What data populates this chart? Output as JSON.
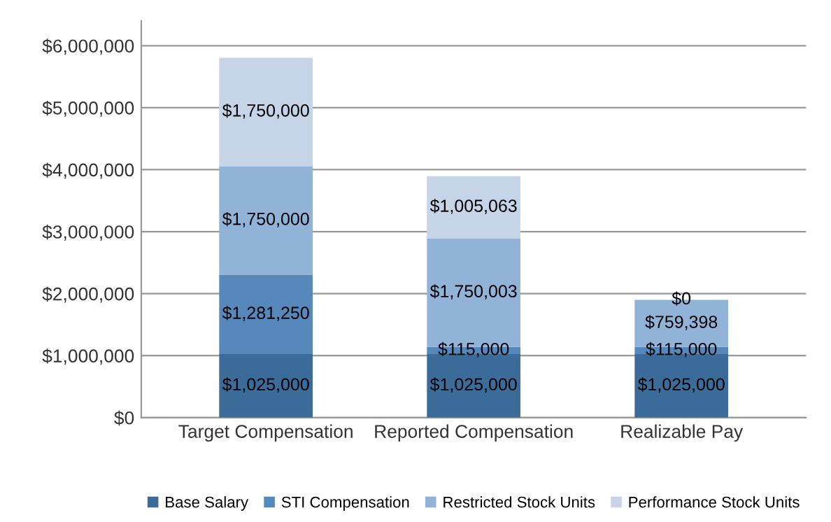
{
  "chart_data": {
    "type": "bar",
    "stacked": true,
    "categories": [
      "Target Compensation",
      "Reported Compensation",
      "Realizable Pay"
    ],
    "series": [
      {
        "name": "Base Salary",
        "color": "#3b6b98",
        "values": [
          1025000,
          1025000,
          1025000
        ],
        "value_labels": [
          "$1,025,000",
          "$1,025,000",
          "$1,025,000"
        ]
      },
      {
        "name": "STI Compensation",
        "color": "#5688bb",
        "values": [
          1281250,
          115000,
          115000
        ],
        "value_labels": [
          "$1,281,250",
          "$115,000",
          "$115,000"
        ]
      },
      {
        "name": "Restricted Stock Units",
        "color": "#92b3d8",
        "values": [
          1750000,
          1750003,
          759398
        ],
        "value_labels": [
          "$1,750,000",
          "$1,750,003",
          "$759,398"
        ]
      },
      {
        "name": "Performance Stock Units",
        "color": "#c5d4e7",
        "values": [
          1750000,
          1005063,
          0
        ],
        "value_labels": [
          "$1,750,000",
          "$1,005,063",
          "$0"
        ]
      }
    ],
    "ylim": [
      0,
      6400000
    ],
    "yticks": [
      {
        "value": 0,
        "label": "$0"
      },
      {
        "value": 1000000,
        "label": "$1,000,000"
      },
      {
        "value": 2000000,
        "label": "$2,000,000"
      },
      {
        "value": 3000000,
        "label": "$3,000,000"
      },
      {
        "value": 4000000,
        "label": "$4,000,000"
      },
      {
        "value": 5000000,
        "label": "$5,000,000"
      },
      {
        "value": 6000000,
        "label": "$6,000,000"
      }
    ],
    "grid": "y",
    "legend": "bottom"
  }
}
